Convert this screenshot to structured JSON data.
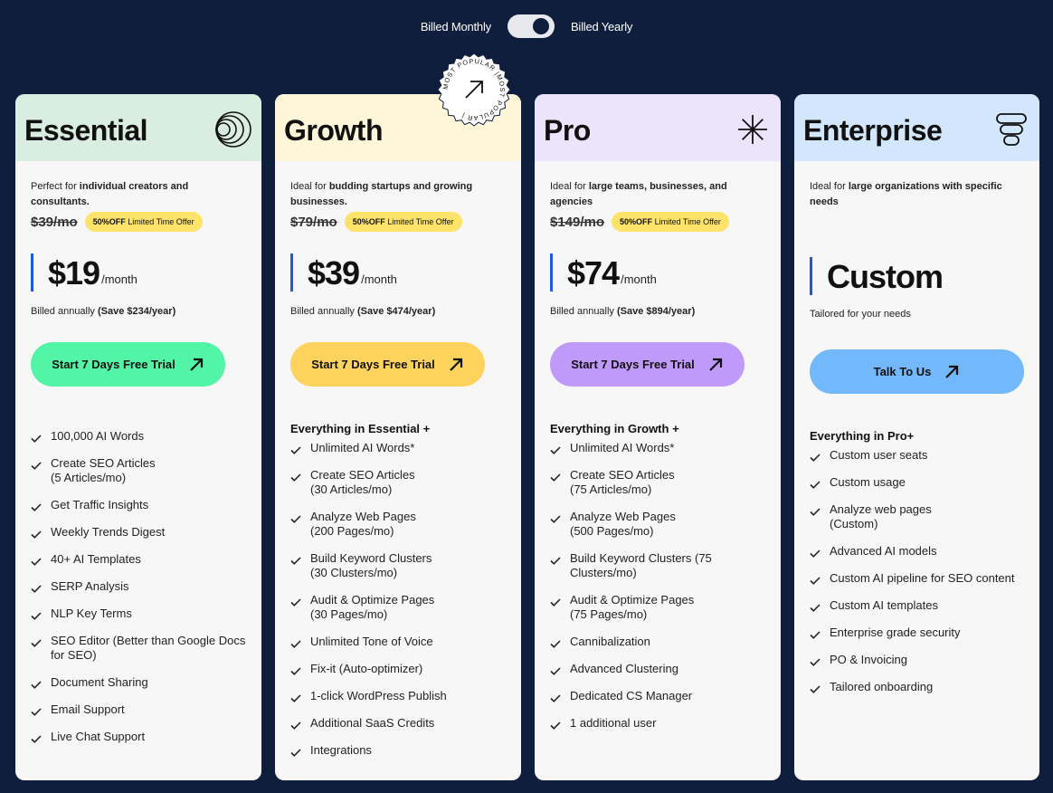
{
  "billing": {
    "monthly_label": "Billed Monthly",
    "yearly_label": "Billed Yearly",
    "selected": "yearly"
  },
  "badge": {
    "text": "MOST POPULAR |MOST POPULAR |"
  },
  "plans": [
    {
      "name": "Essential",
      "header_color": "#d9ede1",
      "icon": "concentric-circles-icon",
      "desc_prefix": "Perfect for ",
      "desc_bold": "individual creators and consultants.",
      "old_price": "$39/mo",
      "promo_bold": "50%OFF",
      "promo_text": " Limited Time Offer",
      "price": "$19",
      "unit": "/month",
      "billed_prefix": "Billed annually ",
      "billed_bold": "(Save $234/year)",
      "cta_label": "Start 7 Days Free Trial",
      "cta_color": "#52f4a6",
      "features_head": "",
      "features": [
        "100,000 AI Words",
        "Create SEO Articles\n(5 Articles/mo)",
        "Get Traffic Insights",
        "Weekly Trends Digest",
        "40+ AI Templates",
        "SERP Analysis",
        "NLP Key Terms",
        "SEO Editor (Better than Google Docs\nfor SEO)",
        "Document Sharing",
        "Email Support",
        "Live Chat Support"
      ]
    },
    {
      "name": "Growth",
      "header_color": "#fdf6d8",
      "icon": "",
      "desc_prefix": "Ideal for ",
      "desc_bold": "budding startups and growing businesses.",
      "old_price": "$79/mo",
      "promo_bold": "50%OFF",
      "promo_text": " Limited Time Offer",
      "price": "$39",
      "unit": "/month",
      "billed_prefix": "Billed annually ",
      "billed_bold": "(Save $474/year)",
      "cta_label": "Start 7 Days Free Trial",
      "cta_color": "#fdd35d",
      "features_head": "Everything in Essential +",
      "features": [
        "Unlimited AI Words*",
        "Create SEO Articles\n(30 Articles/mo)",
        "Analyze Web Pages\n(200 Pages/mo)",
        "Build Keyword Clusters\n(30 Clusters/mo)",
        "Audit & Optimize Pages\n(30 Pages/mo)",
        "Unlimited Tone of Voice",
        "Fix-it (Auto-optimizer)",
        "1-click WordPress Publish",
        "Additional SaaS Credits",
        "Integrations"
      ]
    },
    {
      "name": "Pro",
      "header_color": "#ece4fb",
      "icon": "asterisk-icon",
      "desc_prefix": "Ideal for ",
      "desc_bold": "large teams, businesses, and agencies",
      "old_price": "$149/mo",
      "promo_bold": "50%OFF",
      "promo_text": " Limited Time Offer",
      "price": "$74",
      "unit": "/month",
      "billed_prefix": "Billed annually ",
      "billed_bold": "(Save $894/year)",
      "cta_label": "Start 7 Days Free Trial",
      "cta_color": "#c09afa",
      "features_head": "Everything in Growth +",
      "features": [
        "Unlimited AI Words*",
        "Create SEO Articles\n(75 Articles/mo)",
        "Analyze Web Pages\n(500 Pages/mo)",
        "Build Keyword Clusters (75\nClusters/mo)",
        "Audit & Optimize Pages\n(75 Pages/mo)",
        "Cannibalization",
        "Advanced Clustering",
        "Dedicated CS Manager",
        "1 additional user"
      ]
    },
    {
      "name": "Enterprise",
      "header_color": "#d2e7fc",
      "icon": "stacked-layers-icon",
      "desc_prefix": "Ideal for ",
      "desc_bold": "large organizations with specific needs",
      "price": "Custom",
      "tailored": "Tailored for your needs",
      "cta_label": "Talk To Us",
      "cta_color": "#72b8fb",
      "features_head": "Everything in Pro+",
      "features": [
        "Custom user seats",
        "Custom usage",
        "Analyze web pages\n(Custom)",
        "Advanced AI models",
        "Custom AI pipeline for SEO content",
        "Custom AI templates",
        "Enterprise grade security",
        "PO & Invoicing",
        "Tailored onboarding"
      ]
    }
  ]
}
